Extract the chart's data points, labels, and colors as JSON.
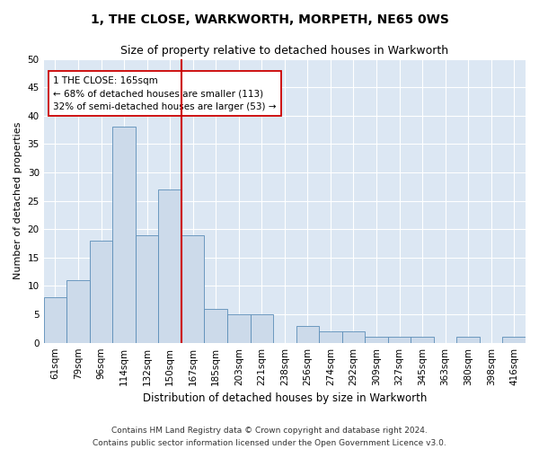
{
  "title": "1, THE CLOSE, WARKWORTH, MORPETH, NE65 0WS",
  "subtitle": "Size of property relative to detached houses in Warkworth",
  "xlabel": "Distribution of detached houses by size in Warkworth",
  "ylabel": "Number of detached properties",
  "bin_labels": [
    "61sqm",
    "79sqm",
    "96sqm",
    "114sqm",
    "132sqm",
    "150sqm",
    "167sqm",
    "185sqm",
    "203sqm",
    "221sqm",
    "238sqm",
    "256sqm",
    "274sqm",
    "292sqm",
    "309sqm",
    "327sqm",
    "345sqm",
    "363sqm",
    "380sqm",
    "398sqm",
    "416sqm"
  ],
  "bar_heights": [
    8,
    11,
    18,
    38,
    19,
    27,
    19,
    6,
    5,
    5,
    0,
    3,
    2,
    2,
    1,
    1,
    1,
    0,
    1,
    0,
    1
  ],
  "bar_color": "#ccdaea",
  "bar_edge_color": "#5b8db8",
  "vline_color": "#cc0000",
  "annotation_title": "1 THE CLOSE: 165sqm",
  "annotation_line1": "← 68% of detached houses are smaller (113)",
  "annotation_line2": "32% of semi-detached houses are larger (53) →",
  "annotation_box_color": "#ffffff",
  "annotation_box_edge": "#cc0000",
  "ylim": [
    0,
    50
  ],
  "yticks": [
    0,
    5,
    10,
    15,
    20,
    25,
    30,
    35,
    40,
    45,
    50
  ],
  "plot_bg_color": "#dce7f3",
  "footer_line1": "Contains HM Land Registry data © Crown copyright and database right 2024.",
  "footer_line2": "Contains public sector information licensed under the Open Government Licence v3.0.",
  "title_fontsize": 10,
  "subtitle_fontsize": 9,
  "xlabel_fontsize": 8.5,
  "ylabel_fontsize": 8,
  "tick_fontsize": 7.5,
  "footer_fontsize": 6.5
}
